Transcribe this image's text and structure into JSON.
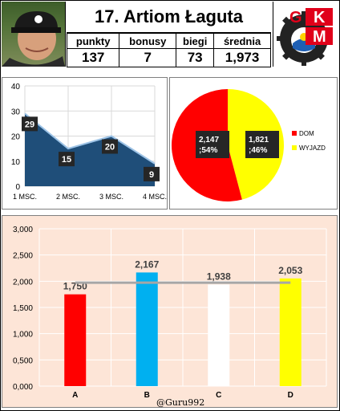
{
  "header": {
    "title": "17. Artiom Łaguta",
    "stat_labels": [
      "punkty",
      "bonusy",
      "biegi",
      "średnia"
    ],
    "stat_values": [
      "137",
      "7",
      "73",
      "1,973"
    ]
  },
  "logo": {
    "letters": [
      "G",
      "K",
      "M"
    ]
  },
  "credit": "@Guru992",
  "colors": {
    "area_fill": "#1f4e79",
    "pie_home": "#ff0000",
    "pie_away": "#ffff00",
    "bar_a": "#ff0000",
    "bar_b": "#00b0f0",
    "bar_c": "#ffffff",
    "bar_d": "#ffff00",
    "avg_line": "#a6a6a6",
    "bar_bg": "#fde5d7"
  },
  "chart_data": [
    {
      "type": "area",
      "categories": [
        "1 MSC.",
        "2 MSC.",
        "3 MSC.",
        "4 MSC."
      ],
      "values": [
        29,
        15,
        20,
        9
      ],
      "ylim": [
        0,
        40
      ],
      "yticks": [
        "0",
        "10",
        "20",
        "30",
        "40"
      ],
      "grid": true
    },
    {
      "type": "pie",
      "slices": [
        {
          "name": "DOM",
          "value": 2.147,
          "percent": 54,
          "label": "2,147 ; 54%"
        },
        {
          "name": "WYJAZD",
          "value": 1.821,
          "percent": 46,
          "label": "1,821 ; 46%"
        }
      ],
      "legend": "right"
    },
    {
      "type": "bar",
      "categories": [
        "A",
        "B",
        "C",
        "D"
      ],
      "values": [
        1.75,
        2.167,
        1.938,
        2.053
      ],
      "value_labels": [
        "1,750",
        "2,167",
        "1,938",
        "2,053"
      ],
      "reference_line": 1.973,
      "ylim": [
        0,
        3
      ],
      "yticks": [
        "0,000",
        "0,500",
        "1,000",
        "1,500",
        "2,000",
        "2,500",
        "3,000"
      ],
      "grid": true
    }
  ]
}
